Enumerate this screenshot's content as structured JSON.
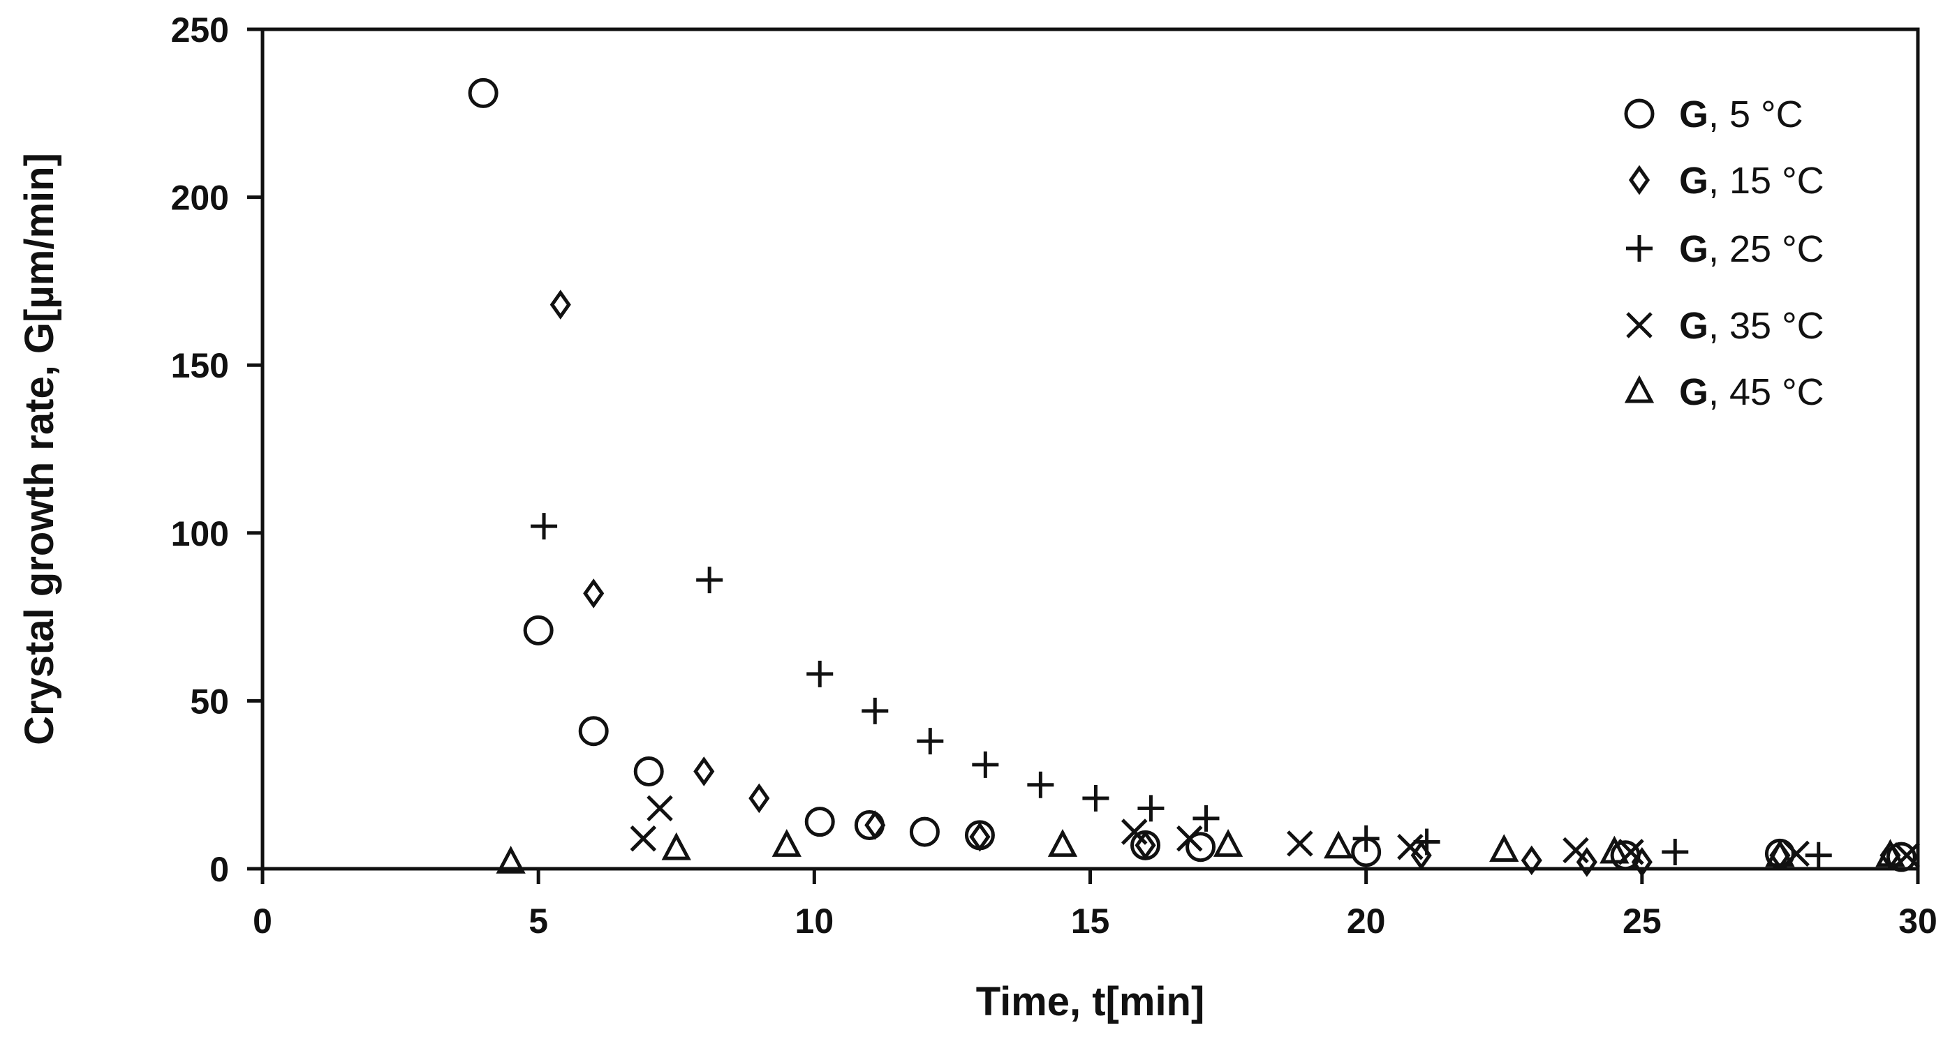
{
  "chart_data": {
    "type": "scatter",
    "title": "",
    "xlabel": "Time, t[min]",
    "ylabel": "Crystal growth rate, G[µm/min]",
    "xlim": [
      0,
      30
    ],
    "ylim": [
      0,
      250
    ],
    "xticks": [
      0,
      5,
      10,
      15,
      20,
      25,
      30
    ],
    "yticks": [
      0,
      50,
      100,
      150,
      200,
      250
    ],
    "grid": false,
    "legend_position": "top-right",
    "series": [
      {
        "name": "G, 5 °C",
        "name_bold": "G",
        "name_rest": ", 5 °C",
        "marker": "circle",
        "points": [
          [
            4,
            231
          ],
          [
            5,
            71
          ],
          [
            6,
            41
          ],
          [
            7,
            29
          ],
          [
            10.1,
            14
          ],
          [
            11,
            13
          ],
          [
            12,
            11
          ],
          [
            13,
            10
          ],
          [
            16,
            7
          ],
          [
            17,
            6.5
          ],
          [
            20,
            5
          ],
          [
            24.7,
            4
          ],
          [
            27.5,
            4.5
          ],
          [
            29.7,
            3.5
          ]
        ]
      },
      {
        "name": "G, 15 °C",
        "name_bold": "G",
        "name_rest": ", 15 °C",
        "marker": "diamond",
        "points": [
          [
            5.4,
            168
          ],
          [
            6,
            82
          ],
          [
            8,
            29
          ],
          [
            9,
            21
          ],
          [
            11.1,
            13
          ],
          [
            13,
            9.5
          ],
          [
            16,
            7
          ],
          [
            21,
            4
          ],
          [
            23,
            2.5
          ],
          [
            24,
            2
          ],
          [
            25,
            2
          ],
          [
            27.5,
            4
          ],
          [
            29.5,
            4
          ]
        ]
      },
      {
        "name": "G, 25 °C",
        "name_bold": "G",
        "name_rest": ", 25 °C",
        "marker": "plus",
        "points": [
          [
            5.1,
            102
          ],
          [
            8.1,
            86
          ],
          [
            10.1,
            58
          ],
          [
            11.1,
            47
          ],
          [
            12.1,
            38
          ],
          [
            13.1,
            31
          ],
          [
            14.1,
            25
          ],
          [
            15.1,
            21
          ],
          [
            16.1,
            18
          ],
          [
            17.1,
            15
          ],
          [
            20,
            9
          ],
          [
            21.1,
            8
          ],
          [
            25.6,
            5
          ],
          [
            28.2,
            4
          ]
        ]
      },
      {
        "name": "G, 35 °C",
        "name_bold": "G",
        "name_rest": ", 35 °C",
        "marker": "x",
        "points": [
          [
            6.9,
            9
          ],
          [
            7.2,
            18
          ],
          [
            15.8,
            11
          ],
          [
            16.8,
            9
          ],
          [
            18.8,
            7.5
          ],
          [
            20.8,
            6.5
          ],
          [
            23.8,
            5.5
          ],
          [
            24.8,
            5
          ],
          [
            27.8,
            4.5
          ],
          [
            29.8,
            4
          ]
        ]
      },
      {
        "name": "G, 45 °C",
        "name_bold": "G",
        "name_rest": ", 45 °C",
        "marker": "triangle",
        "points": [
          [
            4.5,
            2
          ],
          [
            7.5,
            6
          ],
          [
            9.5,
            7
          ],
          [
            14.5,
            7
          ],
          [
            17.5,
            7
          ],
          [
            19.5,
            6.5
          ],
          [
            22.5,
            5.5
          ],
          [
            24.5,
            5
          ],
          [
            27.5,
            4
          ],
          [
            29.5,
            4
          ]
        ]
      }
    ]
  }
}
